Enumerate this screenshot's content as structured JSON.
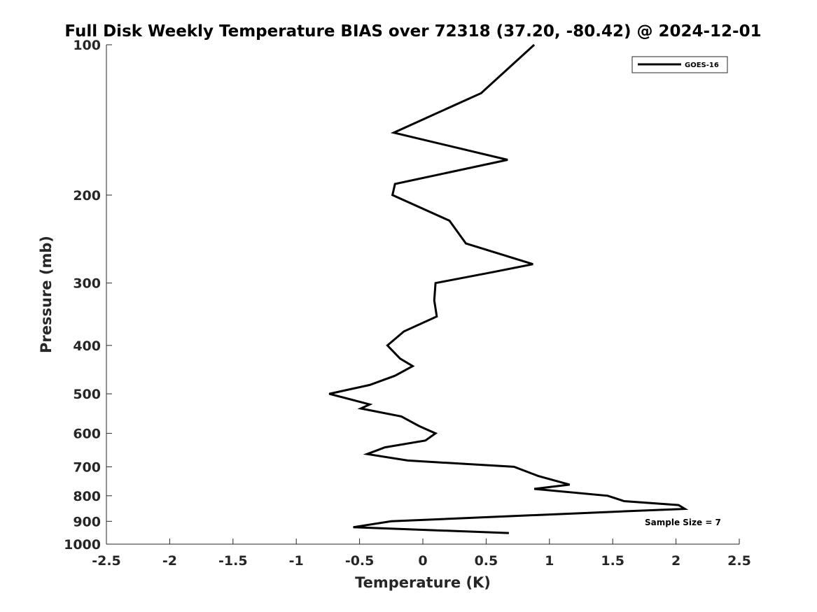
{
  "chart_data": {
    "type": "line",
    "title": "Full Disk Weekly Temperature BIAS over 72318 (37.20, -80.42) @ 2024-12-01",
    "xlabel": "Temperature (K)",
    "ylabel": "Pressure (mb)",
    "xlim": [
      -2.5,
      2.5
    ],
    "ylim": [
      100,
      1000
    ],
    "y_scale": "log",
    "y_reversed": true,
    "grid": false,
    "legend_position": "top-right",
    "x_ticks": [
      -2.5,
      -2,
      -1.5,
      -1,
      -0.5,
      0,
      0.5,
      1,
      1.5,
      2,
      2.5
    ],
    "x_tick_labels": [
      "-2.5",
      "-2",
      "-1.5",
      "-1",
      "-0.5",
      "0",
      "0.5",
      "1",
      "1.5",
      "2",
      "2.5"
    ],
    "y_ticks": [
      100,
      200,
      300,
      400,
      500,
      600,
      700,
      800,
      900,
      1000
    ],
    "y_tick_labels": [
      "100",
      "200",
      "300",
      "400",
      "500",
      "600",
      "700",
      "800",
      "900",
      "1000"
    ],
    "annotation": "Sample Size = 7",
    "series": [
      {
        "name": "GOES-16",
        "color": "#000000",
        "points": [
          {
            "x": 0.88,
            "y": 100
          },
          {
            "x": 0.46,
            "y": 125
          },
          {
            "x": -0.23,
            "y": 150
          },
          {
            "x": 0.67,
            "y": 170
          },
          {
            "x": -0.22,
            "y": 190
          },
          {
            "x": -0.24,
            "y": 200
          },
          {
            "x": 0.21,
            "y": 225
          },
          {
            "x": 0.34,
            "y": 250
          },
          {
            "x": 0.87,
            "y": 275
          },
          {
            "x": 0.56,
            "y": 285
          },
          {
            "x": 0.1,
            "y": 300
          },
          {
            "x": 0.09,
            "y": 325
          },
          {
            "x": 0.11,
            "y": 350
          },
          {
            "x": -0.15,
            "y": 375
          },
          {
            "x": -0.28,
            "y": 400
          },
          {
            "x": -0.18,
            "y": 425
          },
          {
            "x": -0.08,
            "y": 440
          },
          {
            "x": -0.22,
            "y": 460
          },
          {
            "x": -0.42,
            "y": 480
          },
          {
            "x": -0.74,
            "y": 500
          },
          {
            "x": -0.42,
            "y": 525
          },
          {
            "x": -0.49,
            "y": 535
          },
          {
            "x": -0.17,
            "y": 555
          },
          {
            "x": -0.03,
            "y": 580
          },
          {
            "x": 0.1,
            "y": 600
          },
          {
            "x": 0.02,
            "y": 620
          },
          {
            "x": -0.3,
            "y": 640
          },
          {
            "x": -0.44,
            "y": 660
          },
          {
            "x": -0.12,
            "y": 680
          },
          {
            "x": 0.72,
            "y": 700
          },
          {
            "x": 0.91,
            "y": 730
          },
          {
            "x": 1.16,
            "y": 760
          },
          {
            "x": 0.88,
            "y": 775
          },
          {
            "x": 1.46,
            "y": 800
          },
          {
            "x": 1.59,
            "y": 820
          },
          {
            "x": 2.02,
            "y": 835
          },
          {
            "x": 2.07,
            "y": 850
          },
          {
            "x": 1.57,
            "y": 860
          },
          {
            "x": -0.25,
            "y": 900
          },
          {
            "x": -0.55,
            "y": 925
          },
          {
            "x": 0.68,
            "y": 950
          }
        ]
      }
    ]
  }
}
